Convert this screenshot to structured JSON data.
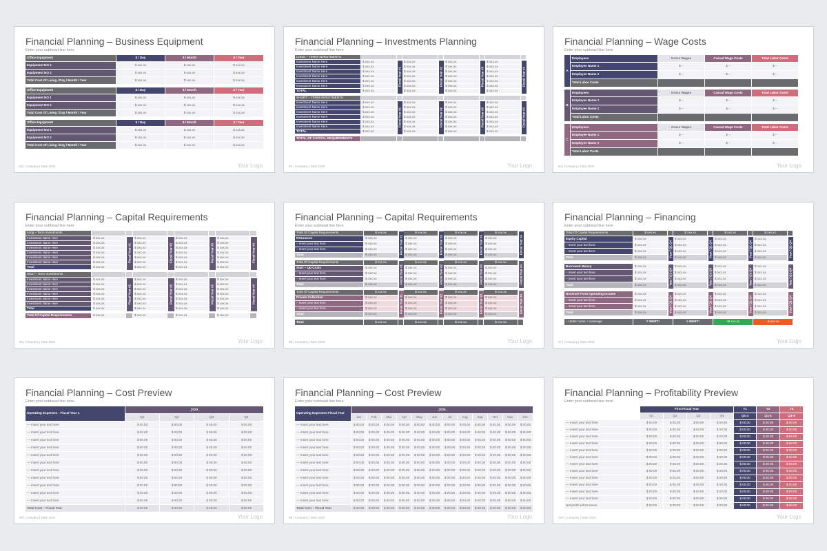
{
  "colors": {
    "gray": "#6a6b6d",
    "navy": "#45466e",
    "purple": "#645774",
    "mauve": "#8f6780",
    "rose": "#cf6d7c",
    "green": "#33a852",
    "orange": "#ee5a24"
  },
  "common": {
    "subhead": "Enter your subhead line here",
    "company": "| Company | Date 2020",
    "logo": "Your Logo"
  },
  "slides": [
    {
      "title": "Financial Planning – Business Equipment",
      "page": "92"
    },
    {
      "title": "Financial Planning – Investments Planning",
      "page": "93"
    },
    {
      "title": "Financial Planning – Wage Costs",
      "page": "94"
    },
    {
      "title": "Financial Planning – Capital Requirements",
      "page": "95"
    },
    {
      "title": "Financial Planning – Capital Requirements",
      "page": "96"
    },
    {
      "title": "Financial Planning – Financing",
      "page": "97"
    },
    {
      "title": "Financial Planning – Cost Preview",
      "page": "98"
    },
    {
      "title": "Financial Planning – Cost Preview",
      "page": "99"
    },
    {
      "title": "Financial Planning – Profitability Preview",
      "page": "100"
    }
  ],
  "equipment": {
    "headers": [
      "Office Equipment",
      "$ / Day",
      "$ / Month",
      "$ / Year"
    ],
    "rows": [
      "Equipment NO 1",
      "Equipment NO 2"
    ],
    "total": "Total Cost Of Living / Day / Month / Year",
    "value": "$ xxx.xx"
  },
  "investments": {
    "long": "LONG – TERM INVESTMENTS",
    "short": "SHORT – TERM INVESTMENTS",
    "item": "Investment Name Here",
    "total": "TOTAL",
    "capital_total": "TOTAL OF CAPITAL REQUIREMENTS",
    "value": "$ xxx.xx",
    "years": [
      "Fiscal Year #1",
      "Fiscal Year #2",
      "Fiscal Year #3",
      "Fiscal Year #4"
    ]
  },
  "wages": {
    "groups": [
      "A",
      "B",
      "C"
    ],
    "headers": [
      "Employees",
      "Gross Wages",
      "Casual Wage Costs",
      "Total Labor Costs"
    ],
    "rows": [
      "Employee Name 1",
      "Employee Name 2"
    ],
    "total": "Total Labor Costs",
    "value": "$ –"
  },
  "capreq": {
    "long": "Long – Term Investments",
    "short": "Short – Term Investments",
    "item": "Investment Name Here",
    "total": "Total",
    "capital_total": "Total Of Capital Requirements",
    "value": "$ xxx.xx",
    "years": [
      "Fiscal Year #1",
      "Fiscal Year #2",
      "Fiscal Year #3",
      "Fiscal Year #4"
    ]
  },
  "capreq2": {
    "header": "Total Of Capital Requirements",
    "value": "$ xxx.xx",
    "sections": [
      "Resources",
      "Start – Up-Costs",
      "Private Collection"
    ],
    "item": "– Insert your text here",
    "total": "Total",
    "years": [
      "Fiscal Year #1",
      "Fiscal Year #2",
      "Fiscal Year #3",
      "Fiscal Year #4"
    ]
  },
  "financing": {
    "header": "Total Of Capital Requirements",
    "value": "$ xxx.xx",
    "sections": [
      "Equity Capital",
      "Borrowed Money",
      "Revenue From Operating Income"
    ],
    "item": "– Insert your text here",
    "total": "Total",
    "cover": "↑ Under cover + coverage",
    "err": "# WERT!",
    "pos": "+$ xxx.xx",
    "neg": "-$ xxx.xx",
    "years": [
      "Year / Q1-Q4",
      "Year / Q1-Q4",
      "Year / Q1-Q4",
      "Year / Q1-Q4"
    ]
  },
  "cost1": {
    "year": "_2020_",
    "header": "Operating Expenses - Fiscal Year 1",
    "quarters": [
      "Q1",
      "Q2",
      "Q3",
      "Q4"
    ],
    "item": "— Insert your text here",
    "total": "Total Cost – Fiscal Year",
    "value": "$ 00.00"
  },
  "cost2": {
    "year": "_2020_",
    "header": "Operating Expenses-Fiscal Year",
    "months": [
      "Jan",
      "Feb",
      "Mar",
      "Apr",
      "May",
      "Jun",
      "Jul",
      "Aug",
      "Sep",
      "Oct",
      "Nov",
      "Dec"
    ],
    "item": "— Insert your text here",
    "total": "Total Cost – Fiscal Year",
    "value": "$ 00.00"
  },
  "profit": {
    "first": "First Fiscal Year",
    "quarters": [
      "Q1",
      "Q2",
      "Q3",
      "Q4"
    ],
    "years": [
      "Y1",
      "Y2",
      "Y3"
    ],
    "yq": "Q1-4",
    "item": "— Insert your text here",
    "net": "Net profit before taxes",
    "value": "$ 00.00"
  }
}
